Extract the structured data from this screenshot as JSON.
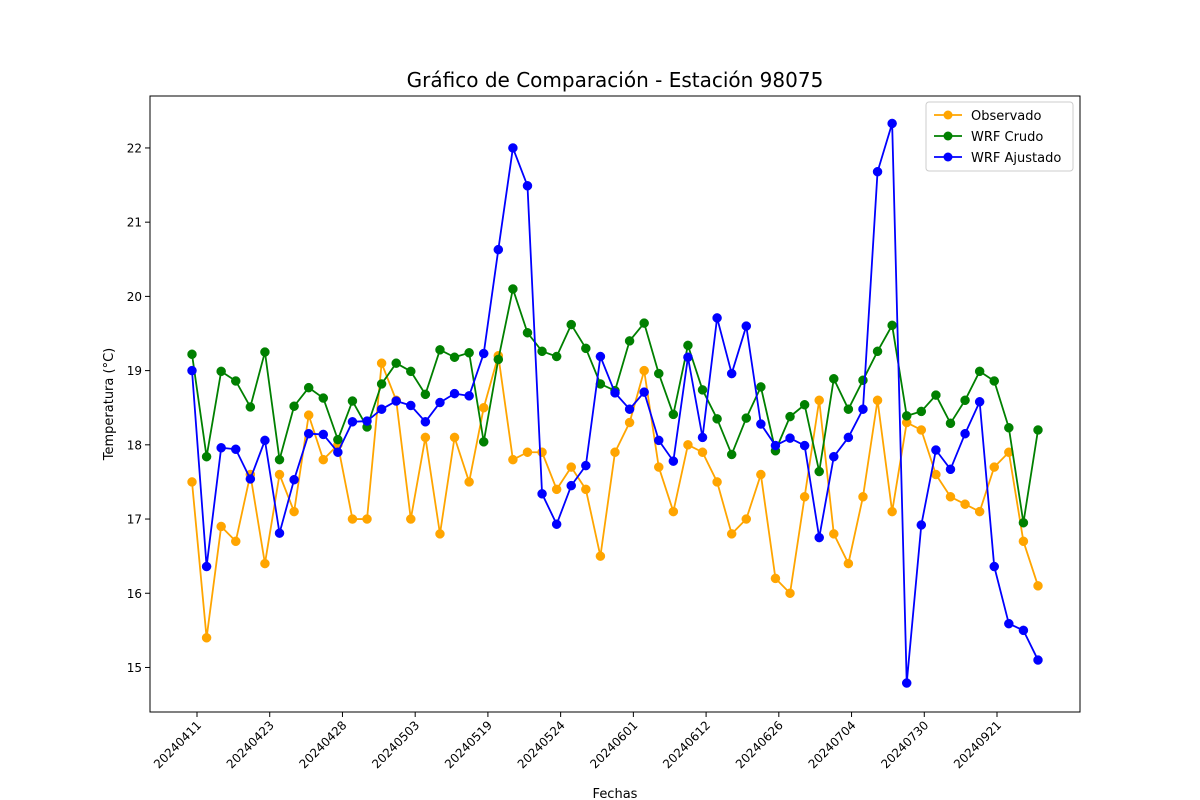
{
  "chart_data": {
    "type": "line",
    "title": "Gráfico de Comparación - Estación 98075",
    "xlabel": "Fechas",
    "ylabel": "Temperatura (°C)",
    "ylim": [
      14.4,
      22.7
    ],
    "yticks": [
      "15",
      "16",
      "17",
      "18",
      "19",
      "20",
      "21",
      "22"
    ],
    "xtick_labels": [
      "20240411",
      "20240423",
      "20240428",
      "20240503",
      "20240519",
      "20240524",
      "20240601",
      "20240612",
      "20240626",
      "20240704",
      "20240730",
      "20240921"
    ],
    "legend_position": "top-right",
    "grid": false,
    "point_count": 59,
    "series": [
      {
        "name": "Observado",
        "color": "#FFA500",
        "values": [
          17.5,
          15.4,
          16.9,
          16.7,
          17.6,
          16.4,
          17.6,
          17.1,
          18.4,
          17.8,
          18.0,
          17.0,
          17.0,
          19.1,
          18.6,
          17.0,
          18.1,
          16.8,
          18.1,
          17.5,
          18.5,
          19.2,
          17.8,
          17.9,
          17.9,
          17.4,
          17.7,
          17.4,
          16.5,
          17.9,
          18.3,
          19.0,
          17.7,
          17.1,
          18.0,
          17.9,
          17.5,
          16.8,
          17.0,
          17.6,
          16.2,
          16.0,
          17.3,
          18.6,
          16.8,
          16.4,
          17.3,
          18.6,
          17.1,
          18.3,
          18.2,
          17.6,
          17.3,
          17.2,
          17.1,
          17.7,
          17.9,
          16.7,
          16.1
        ]
      },
      {
        "name": "WRF Crudo",
        "color": "#008000",
        "values": [
          19.22,
          17.84,
          18.99,
          18.86,
          18.51,
          19.25,
          17.8,
          18.52,
          18.77,
          18.63,
          18.07,
          18.59,
          18.24,
          18.82,
          19.1,
          18.99,
          18.68,
          19.28,
          19.18,
          19.24,
          18.04,
          19.15,
          20.1,
          19.51,
          19.26,
          19.19,
          19.62,
          19.3,
          18.82,
          18.73,
          19.4,
          19.64,
          18.96,
          18.41,
          19.34,
          18.74,
          18.35,
          17.87,
          18.36,
          18.78,
          17.92,
          18.38,
          18.54,
          17.64,
          18.89,
          18.48,
          18.87,
          19.26,
          19.61,
          18.39,
          18.45,
          18.67,
          18.29,
          18.6,
          18.99,
          18.86,
          18.23,
          16.95,
          18.2
        ]
      },
      {
        "name": "WRF Ajustado",
        "color": "#0000FF",
        "values": [
          19.0,
          16.36,
          17.96,
          17.94,
          17.54,
          18.06,
          16.81,
          17.53,
          18.15,
          18.14,
          17.9,
          18.31,
          18.32,
          18.48,
          18.59,
          18.53,
          18.31,
          18.57,
          18.69,
          18.66,
          19.23,
          20.63,
          22.0,
          21.49,
          17.34,
          16.93,
          17.45,
          17.72,
          19.19,
          18.7,
          18.48,
          18.71,
          18.06,
          17.78,
          19.18,
          18.1,
          19.71,
          18.96,
          19.6,
          18.28,
          17.99,
          18.09,
          17.99,
          16.75,
          17.84,
          18.1,
          18.48,
          21.68,
          22.33,
          14.79,
          16.92,
          17.93,
          17.67,
          18.15,
          18.58,
          16.36,
          15.59,
          15.5,
          15.1
        ]
      }
    ]
  }
}
